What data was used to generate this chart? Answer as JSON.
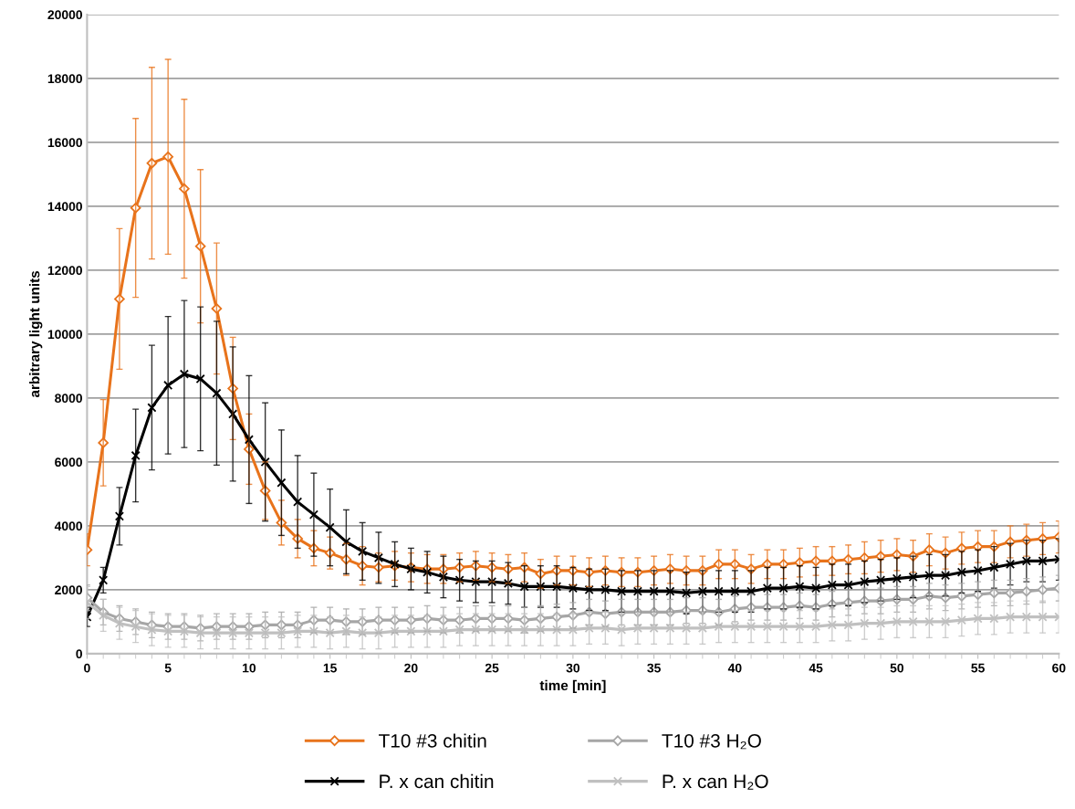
{
  "chart_data": {
    "type": "line",
    "xlabel": "time [min]",
    "ylabel": "arbitrary light units",
    "x": [
      0,
      1,
      2,
      3,
      4,
      5,
      6,
      7,
      8,
      9,
      10,
      11,
      12,
      13,
      14,
      15,
      16,
      17,
      18,
      19,
      20,
      21,
      22,
      23,
      24,
      25,
      26,
      27,
      28,
      29,
      30,
      31,
      32,
      33,
      34,
      35,
      36,
      37,
      38,
      39,
      40,
      41,
      42,
      43,
      44,
      45,
      46,
      47,
      48,
      49,
      50,
      51,
      52,
      53,
      54,
      55,
      56,
      57,
      58,
      59,
      60
    ],
    "xlim": [
      0,
      60
    ],
    "xticks": [
      0,
      5,
      10,
      15,
      20,
      25,
      30,
      35,
      40,
      45,
      50,
      55,
      60
    ],
    "ylim": [
      0,
      20000
    ],
    "yticks": [
      0,
      2000,
      4000,
      6000,
      8000,
      10000,
      12000,
      14000,
      16000,
      18000,
      20000
    ],
    "grid": "y",
    "legend": "bottom",
    "series": [
      {
        "name": "T10 #3 chitin",
        "color": "#e8731b",
        "marker": "diamond",
        "values": [
          3250,
          6600,
          11100,
          13950,
          15350,
          15550,
          14550,
          12750,
          10800,
          8300,
          6400,
          5100,
          4100,
          3600,
          3300,
          3150,
          2950,
          2750,
          2700,
          2750,
          2700,
          2650,
          2650,
          2700,
          2750,
          2700,
          2650,
          2700,
          2500,
          2600,
          2600,
          2550,
          2600,
          2550,
          2550,
          2600,
          2650,
          2600,
          2600,
          2800,
          2800,
          2650,
          2800,
          2800,
          2850,
          2900,
          2900,
          2950,
          3000,
          3050,
          3100,
          3050,
          3250,
          3150,
          3300,
          3350,
          3350,
          3500,
          3550,
          3600,
          3650
        ],
        "errors": [
          500,
          1350,
          2200,
          2800,
          3000,
          3050,
          2800,
          2400,
          2050,
          1600,
          1100,
          900,
          700,
          600,
          550,
          500,
          500,
          600,
          450,
          450,
          450,
          450,
          450,
          450,
          450,
          450,
          450,
          450,
          450,
          450,
          450,
          450,
          450,
          450,
          450,
          450,
          450,
          450,
          450,
          450,
          450,
          450,
          450,
          450,
          450,
          450,
          450,
          450,
          500,
          500,
          500,
          500,
          500,
          500,
          500,
          500,
          500,
          500,
          500,
          500,
          500
        ]
      },
      {
        "name": "P. x can chitin",
        "color": "#000000",
        "marker": "cross",
        "values": [
          1150,
          2300,
          4300,
          6200,
          7700,
          8400,
          8750,
          8600,
          8150,
          7500,
          6700,
          6000,
          5350,
          4750,
          4350,
          3950,
          3500,
          3200,
          3000,
          2800,
          2650,
          2550,
          2400,
          2300,
          2250,
          2250,
          2200,
          2100,
          2100,
          2100,
          2050,
          2000,
          2000,
          1950,
          1950,
          1950,
          1950,
          1900,
          1950,
          1950,
          1950,
          1950,
          2050,
          2050,
          2100,
          2050,
          2150,
          2150,
          2250,
          2300,
          2350,
          2400,
          2450,
          2450,
          2550,
          2600,
          2700,
          2800,
          2900,
          2900,
          2950
        ],
        "errors": [
          300,
          400,
          900,
          1450,
          1950,
          2150,
          2300,
          2250,
          2250,
          2100,
          2000,
          1850,
          1650,
          1450,
          1300,
          1200,
          1000,
          900,
          800,
          700,
          650,
          650,
          650,
          650,
          650,
          650,
          650,
          650,
          650,
          650,
          650,
          650,
          650,
          650,
          650,
          650,
          650,
          650,
          650,
          650,
          650,
          650,
          650,
          650,
          650,
          650,
          650,
          650,
          650,
          650,
          650,
          650,
          650,
          650,
          650,
          650,
          650,
          650,
          650,
          650,
          650
        ]
      },
      {
        "name": "T10 #3 H₂O",
        "color": "#a6a6a6",
        "marker": "diamond",
        "values": [
          1750,
          1300,
          1100,
          1000,
          900,
          850,
          850,
          800,
          850,
          850,
          850,
          900,
          900,
          900,
          1050,
          1050,
          1000,
          1000,
          1050,
          1050,
          1050,
          1100,
          1050,
          1050,
          1100,
          1100,
          1100,
          1050,
          1100,
          1150,
          1200,
          1300,
          1250,
          1300,
          1300,
          1300,
          1300,
          1350,
          1350,
          1300,
          1400,
          1450,
          1450,
          1450,
          1500,
          1450,
          1550,
          1600,
          1650,
          1650,
          1700,
          1700,
          1800,
          1750,
          1800,
          1850,
          1900,
          1900,
          1950,
          2000,
          2050
        ],
        "errors": [
          400,
          400,
          400,
          400,
          400,
          400,
          400,
          400,
          400,
          400,
          400,
          400,
          400,
          400,
          400,
          400,
          400,
          400,
          400,
          400,
          400,
          400,
          400,
          400,
          400,
          400,
          400,
          400,
          400,
          400,
          400,
          400,
          400,
          400,
          400,
          400,
          400,
          400,
          400,
          400,
          400,
          400,
          400,
          400,
          400,
          400,
          400,
          400,
          400,
          400,
          400,
          400,
          400,
          400,
          400,
          400,
          400,
          400,
          400,
          400,
          400
        ]
      },
      {
        "name": "P. x can H₂O",
        "color": "#c0c0c0",
        "marker": "cross",
        "values": [
          1600,
          1200,
          950,
          850,
          750,
          700,
          700,
          650,
          650,
          650,
          650,
          650,
          650,
          700,
          700,
          650,
          700,
          650,
          650,
          700,
          700,
          700,
          700,
          750,
          750,
          750,
          750,
          750,
          750,
          750,
          750,
          800,
          800,
          750,
          800,
          800,
          800,
          800,
          800,
          850,
          850,
          850,
          850,
          850,
          850,
          850,
          900,
          900,
          950,
          950,
          1000,
          1000,
          1000,
          1000,
          1050,
          1100,
          1100,
          1150,
          1150,
          1150,
          1150
        ],
        "errors": [
          500,
          500,
          500,
          500,
          500,
          500,
          500,
          500,
          500,
          500,
          500,
          500,
          500,
          500,
          500,
          500,
          500,
          500,
          500,
          500,
          500,
          500,
          500,
          500,
          500,
          500,
          500,
          500,
          500,
          500,
          500,
          500,
          500,
          500,
          500,
          500,
          500,
          500,
          500,
          500,
          500,
          500,
          500,
          500,
          500,
          500,
          500,
          500,
          500,
          500,
          500,
          500,
          500,
          500,
          500,
          500,
          500,
          500,
          500,
          500,
          500
        ]
      }
    ]
  }
}
